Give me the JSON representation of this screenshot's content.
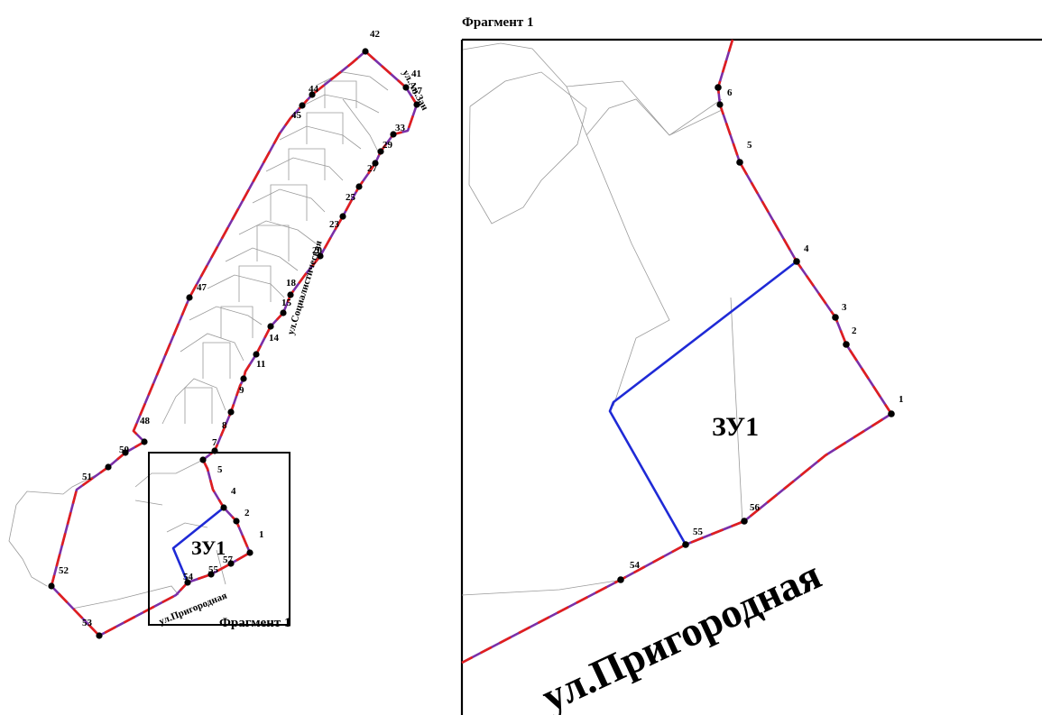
{
  "fragment_title": "Фрагмент 1",
  "fragment_caption": "Фрагмент 1",
  "plot_label": "ЗУ1",
  "streets": {
    "left_top": "ул.Ап.Зан",
    "left_socialist": "ул.Социалистическая",
    "left_prigorodnaya": "ул.Пригородная",
    "right_prigorodnaya": "ул.Пригородная"
  },
  "overview_points": [
    "42",
    "41",
    "37",
    "44",
    "45",
    "33",
    "29",
    "27",
    "25",
    "23",
    "20",
    "18",
    "15",
    "14",
    "11",
    "9",
    "8",
    "7",
    "5",
    "4",
    "2",
    "1",
    "57",
    "55",
    "54",
    "53",
    "52",
    "51",
    "50",
    "48",
    "47"
  ],
  "fragment_points": [
    "6",
    "5",
    "4",
    "3",
    "2",
    "1",
    "56",
    "55",
    "54"
  ],
  "colors": {
    "boundary_red": "#e01e1e",
    "boundary_purple": "#7a2fa8",
    "plot_blue": "#1f2ad6",
    "parcel_gray": "#9a9a9a"
  }
}
